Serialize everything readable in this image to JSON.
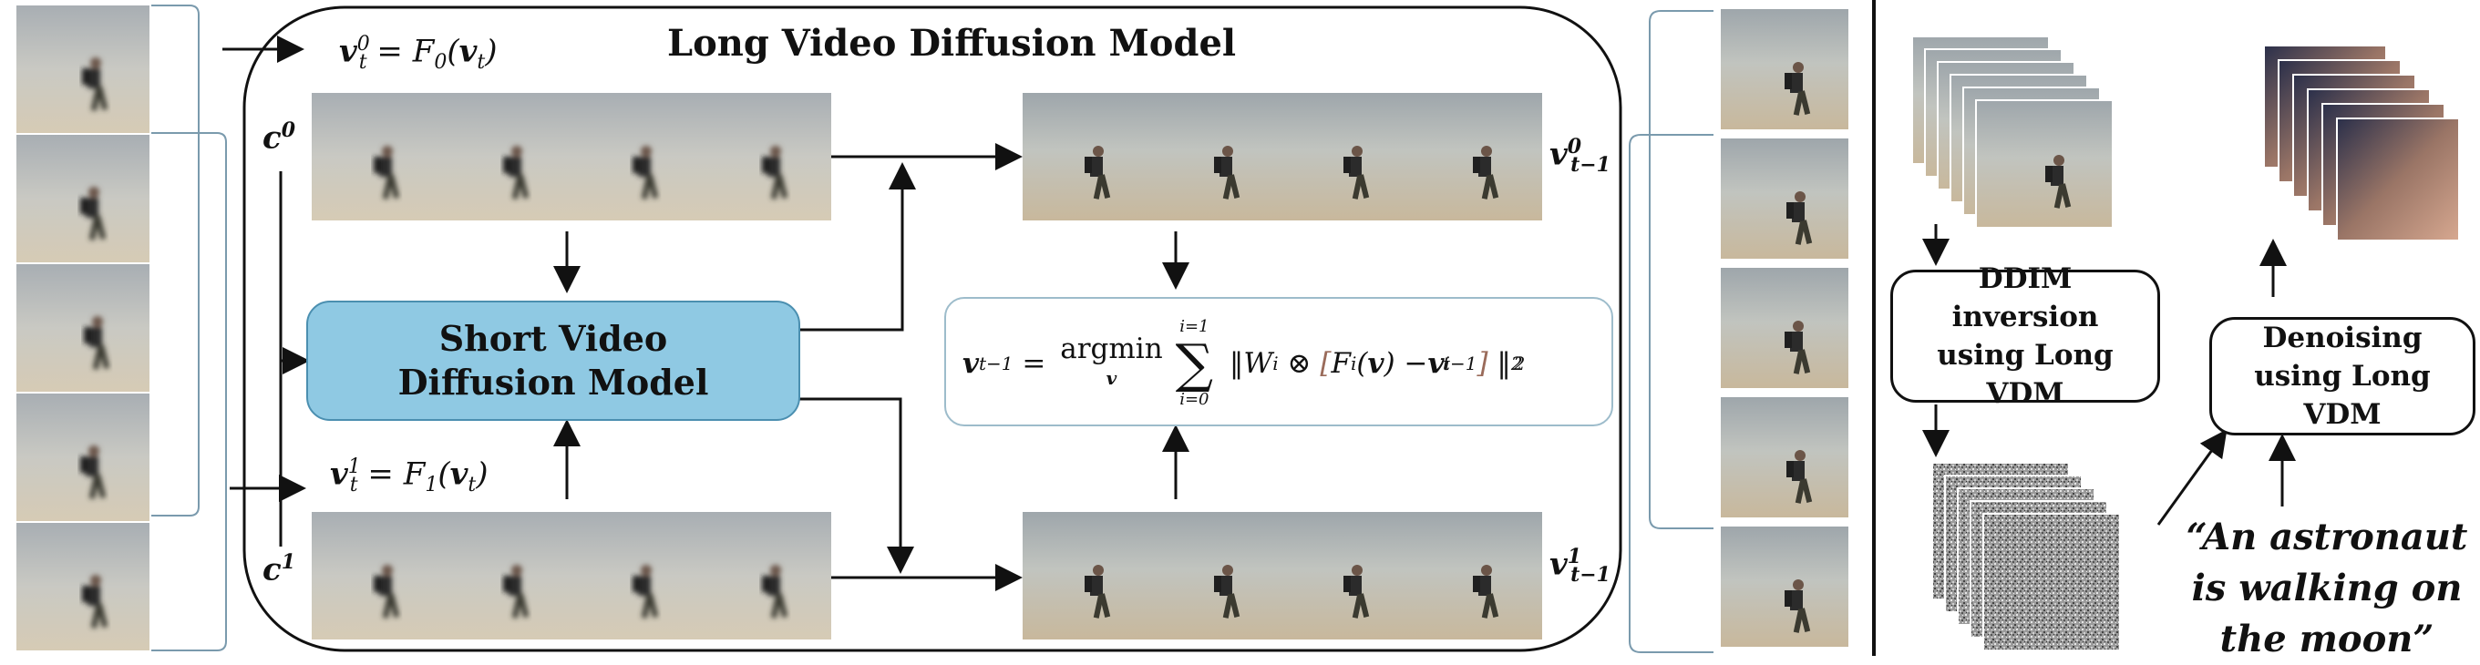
{
  "title": "Long Video Diffusion Model",
  "short_model_label": "Short Video Diffusion Model",
  "eq_v0": "v_t^0 = F_0(v_t)",
  "eq_v1": "v_t^1 = F_1(v_t)",
  "label_c0": "c^0",
  "label_c1": "c^1",
  "label_out0": "v_{t-1}^0",
  "label_out1": "v_{t-1}^1",
  "formula": "v_{t-1} = argmin_v ∑_{i=0}^{i=1} ‖ W_i ⊗ [F_i(v) − v_{t-1}^i] ‖_2^2",
  "ddim_label": "DDIM inversion using Long VDM",
  "denoise_label": "Denoising using Long VDM",
  "prompt_text": "“An astronaut is walking on the moon”",
  "colors": {
    "model_fill": "#8fc9e3",
    "model_stroke": "#4b8fb0",
    "bracket": "#7a9aad",
    "eq_border": "#9dbccb",
    "bracket_highlight": "#9a6b5a"
  }
}
